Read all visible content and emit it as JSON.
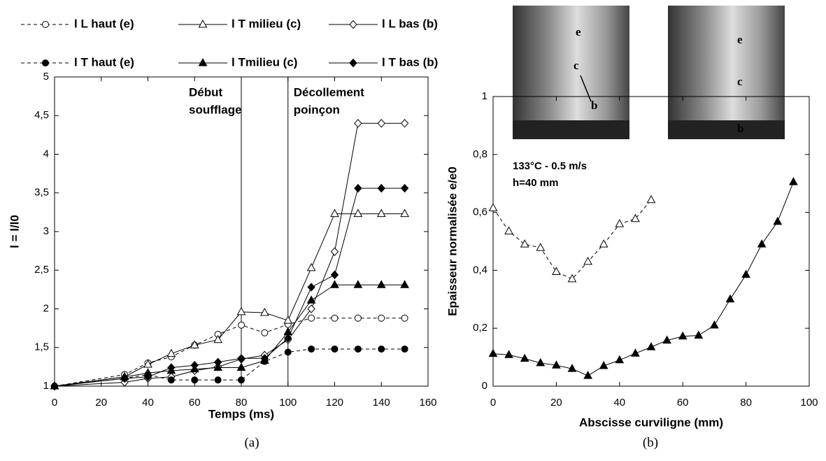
{
  "chart_data": [
    {
      "type": "line",
      "caption": "(a)",
      "xlabel": "Temps (ms)",
      "ylabel": "l = l/l0",
      "x": [
        0,
        30,
        40,
        50,
        60,
        70,
        80,
        90,
        100,
        110,
        120,
        130,
        140,
        150
      ],
      "series": [
        {
          "name": "l L haut (e)",
          "color": "#000000",
          "dashed": true,
          "marker": "circle",
          "filled": false,
          "values": [
            1,
            1.15,
            1.3,
            1.38,
            1.53,
            1.67,
            1.79,
            1.69,
            1.8,
            1.88,
            1.88,
            1.88,
            1.88,
            1.88
          ]
        },
        {
          "name": "l T milieu (c)",
          "color": "#000000",
          "dashed": false,
          "marker": "triangle",
          "filled": false,
          "values": [
            1,
            1.12,
            1.28,
            1.42,
            1.53,
            1.6,
            1.96,
            1.95,
            1.85,
            2.53,
            3.23,
            3.23,
            3.23,
            3.23
          ]
        },
        {
          "name": "l L bas (b)",
          "color": "#000000",
          "dashed": false,
          "marker": "diamond",
          "filled": false,
          "values": [
            1,
            1.05,
            1.1,
            1.12,
            1.2,
            1.25,
            1.35,
            1.4,
            1.6,
            2.0,
            2.74,
            4.4,
            4.4,
            4.4
          ]
        },
        {
          "name": "l T haut (e)",
          "color": "#000000",
          "dashed": true,
          "marker": "circle",
          "filled": true,
          "values": [
            1,
            1.1,
            1.15,
            1.08,
            1.08,
            1.08,
            1.08,
            1.32,
            1.44,
            1.48,
            1.48,
            1.48,
            1.48,
            1.48
          ]
        },
        {
          "name": "l Tmilieu (c)",
          "color": "#000000",
          "dashed": false,
          "marker": "triangle",
          "filled": true,
          "values": [
            1,
            1.12,
            1.17,
            1.2,
            1.22,
            1.24,
            1.24,
            1.33,
            1.7,
            2.11,
            2.31,
            2.31,
            2.31,
            2.31
          ]
        },
        {
          "name": "l T bas (b)",
          "color": "#000000",
          "dashed": false,
          "marker": "diamond",
          "filled": true,
          "values": [
            1,
            1.1,
            1.12,
            1.24,
            1.27,
            1.31,
            1.36,
            1.36,
            1.62,
            2.28,
            2.44,
            3.56,
            3.56,
            3.56
          ]
        }
      ],
      "xlim": [
        0,
        160
      ],
      "xticks": [
        0,
        20,
        40,
        60,
        80,
        100,
        120,
        140,
        160
      ],
      "ylim": [
        1,
        5
      ],
      "yticks": [
        1,
        {
          "value": 1.5,
          "label": "1,5"
        },
        2,
        {
          "value": 2.5,
          "label": "2,5"
        },
        3,
        {
          "value": 3.5,
          "label": "3,5"
        },
        4,
        {
          "value": 4.5,
          "label": "4,5"
        },
        5
      ],
      "vlines": [
        80,
        100
      ],
      "annotations": [
        [
          "Début",
          "soufflage"
        ],
        [
          "Décollement",
          "poinçon"
        ]
      ],
      "grid": false
    },
    {
      "type": "line",
      "caption": "(b)",
      "xlabel": "Abscisse curviligne (mm)",
      "ylabel": "Epaisseur normalisée e/e0",
      "series": [
        {
          "color": "#000000",
          "dashed": true,
          "marker": "triangle",
          "filled": false,
          "x": [
            0,
            5,
            10,
            15,
            20,
            25,
            30,
            35,
            40,
            45,
            50
          ],
          "values": [
            0.615,
            0.535,
            0.49,
            0.478,
            0.395,
            0.37,
            0.43,
            0.49,
            0.56,
            0.578,
            0.643
          ]
        },
        {
          "color": "#000000",
          "dashed": false,
          "marker": "triangle",
          "filled": true,
          "x": [
            0,
            5,
            10,
            15,
            20,
            25,
            30,
            35,
            40,
            45,
            50,
            55,
            60,
            65,
            70,
            75,
            80,
            85,
            90,
            95
          ],
          "values": [
            0.112,
            0.108,
            0.095,
            0.08,
            0.072,
            0.06,
            0.036,
            0.07,
            0.09,
            0.113,
            0.135,
            0.158,
            0.172,
            0.175,
            0.21,
            0.3,
            0.385,
            0.49,
            0.568,
            0.705
          ]
        }
      ],
      "xlim": [
        0,
        100
      ],
      "xticks": [
        0,
        20,
        40,
        60,
        80,
        100
      ],
      "ylim": [
        0,
        1
      ],
      "yticks": [
        0,
        {
          "value": 0.2,
          "label": "0,2"
        },
        {
          "value": 0.4,
          "label": "0,4"
        },
        {
          "value": 0.6,
          "label": "0,6"
        },
        {
          "value": 0.8,
          "label": "0,8"
        },
        1
      ],
      "annotations": [
        "133°C - 0.5 m/s",
        "h=40 mm"
      ],
      "grid": false
    }
  ],
  "photos": [
    [
      "e",
      "c",
      "b"
    ],
    [
      "e",
      "c",
      "b"
    ]
  ]
}
